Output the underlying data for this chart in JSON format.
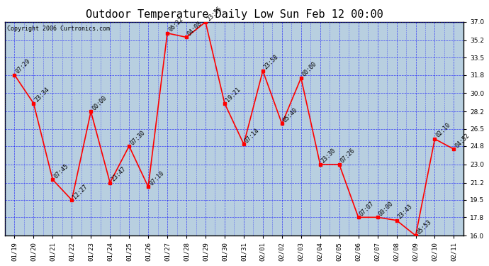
{
  "title": "Outdoor Temperature Daily Low Sun Feb 12 00:00",
  "copyright": "Copyright 2006 Curtronics.com",
  "background_color": "#ffffff",
  "plot_bg_color": "#b8cfe0",
  "line_color": "red",
  "marker_color": "red",
  "grid_color": "blue",
  "x_labels": [
    "01/19",
    "01/20",
    "01/21",
    "01/22",
    "01/23",
    "01/24",
    "01/25",
    "01/26",
    "01/27",
    "01/28",
    "01/29",
    "01/30",
    "01/31",
    "02/01",
    "02/02",
    "02/03",
    "02/04",
    "02/05",
    "02/06",
    "02/07",
    "02/08",
    "02/09",
    "02/10",
    "02/11"
  ],
  "y_values": [
    31.8,
    29.0,
    21.5,
    19.5,
    28.2,
    21.2,
    24.8,
    20.8,
    35.9,
    35.5,
    37.0,
    29.0,
    25.0,
    32.2,
    27.0,
    31.5,
    23.0,
    23.0,
    17.8,
    17.8,
    17.5,
    16.0,
    25.5,
    24.5
  ],
  "point_labels": [
    "07:29",
    "23:34",
    "07:45",
    "12:27",
    "00:00",
    "23:47",
    "07:30",
    "07:10",
    "06:22",
    "04:08",
    "23:56",
    "19:21",
    "07:14",
    "23:58",
    "05:40",
    "00:00",
    "23:30",
    "07:26",
    "07:07",
    "00:00",
    "23:43",
    "05:53",
    "02:10",
    "04:52"
  ],
  "ylim": [
    16.0,
    37.0
  ],
  "yticks": [
    16.0,
    17.8,
    19.5,
    21.2,
    23.0,
    24.8,
    26.5,
    28.2,
    30.0,
    31.8,
    33.5,
    35.2,
    37.0
  ],
  "title_fontsize": 11,
  "label_fontsize": 6,
  "tick_fontsize": 6.5,
  "copyright_fontsize": 6
}
